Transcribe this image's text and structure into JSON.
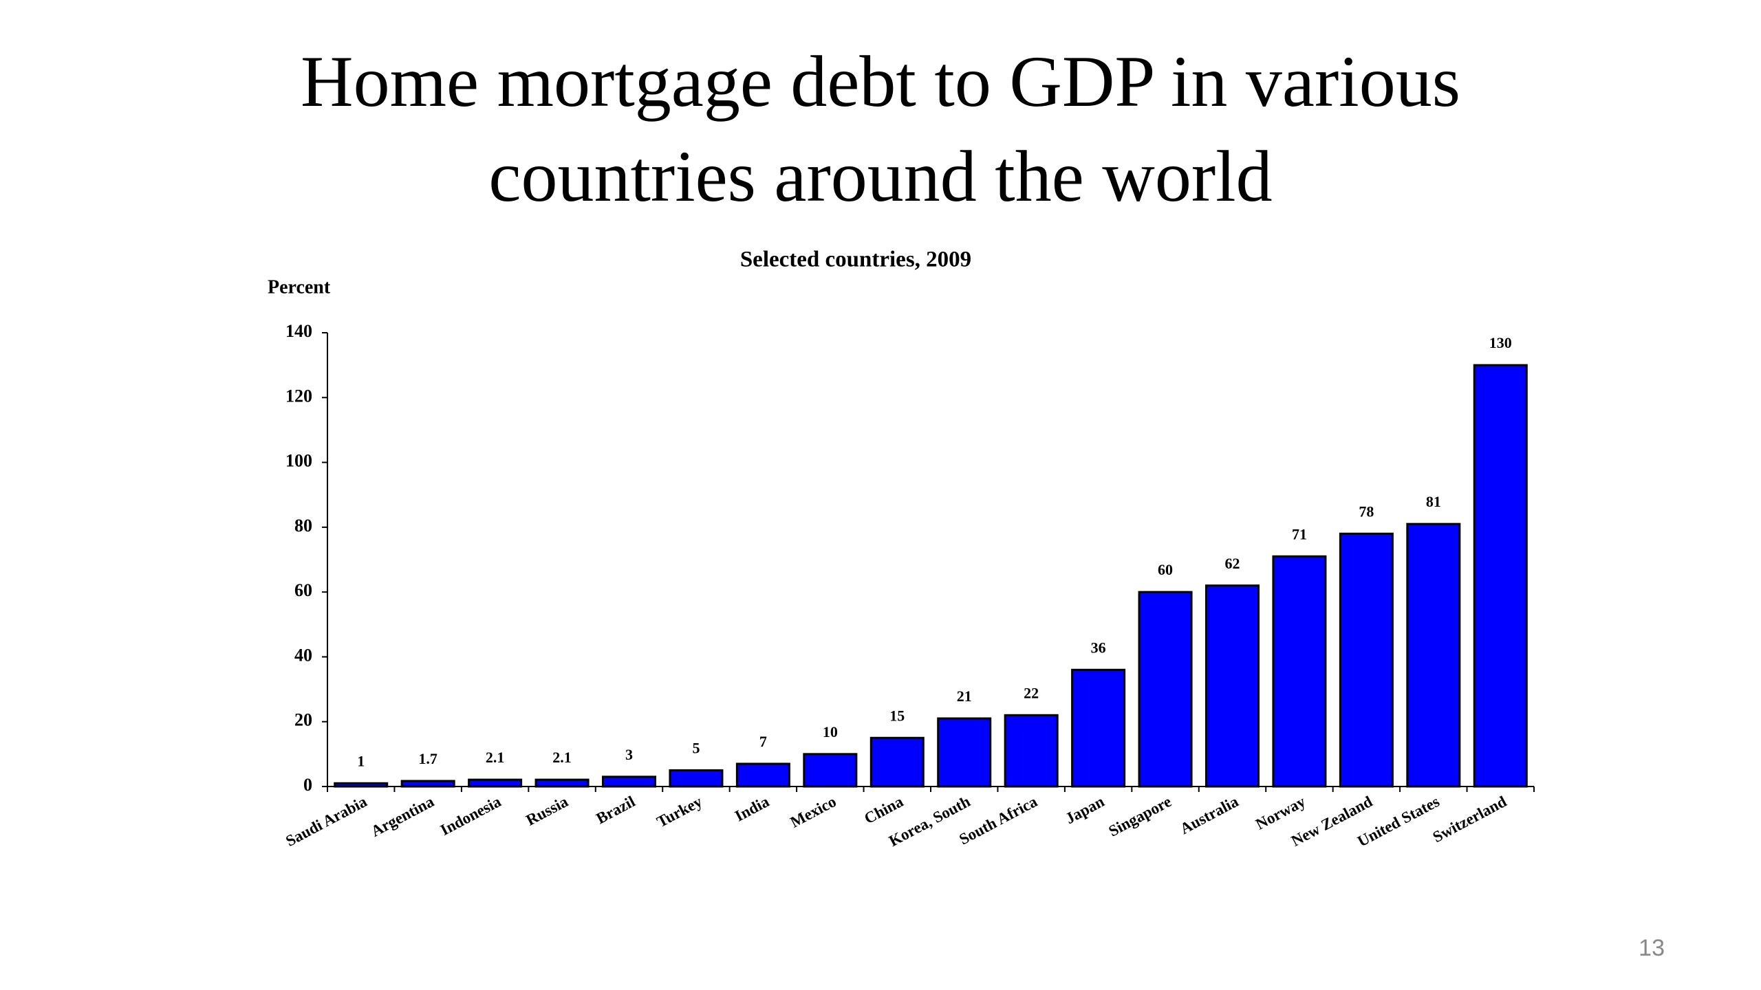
{
  "chart_data": {
    "type": "bar",
    "title": "Home mortgage debt to GDP in various countries around the world",
    "subtitle": "Selected countries, 2009",
    "y_label": "Percent",
    "categories": [
      "Saudi Arabia",
      "Argentina",
      "Indonesia",
      "Russia",
      "Brazil",
      "Turkey",
      "India",
      "Mexico",
      "China",
      "Korea, South",
      "South Africa",
      "Japan",
      "Singapore",
      "Australia",
      "Norway",
      "New Zealand",
      "United States",
      "Switzerland"
    ],
    "values": [
      1,
      1.7,
      2.1,
      2.1,
      3,
      5,
      7,
      10,
      15,
      21,
      22,
      36,
      60,
      62,
      71,
      78,
      81,
      130
    ],
    "color": "#0000ff",
    "ylim": [
      0,
      140
    ],
    "yticks": [
      0,
      20,
      40,
      60,
      80,
      100,
      120,
      140
    ],
    "grid": false
  },
  "slide_number": "13"
}
